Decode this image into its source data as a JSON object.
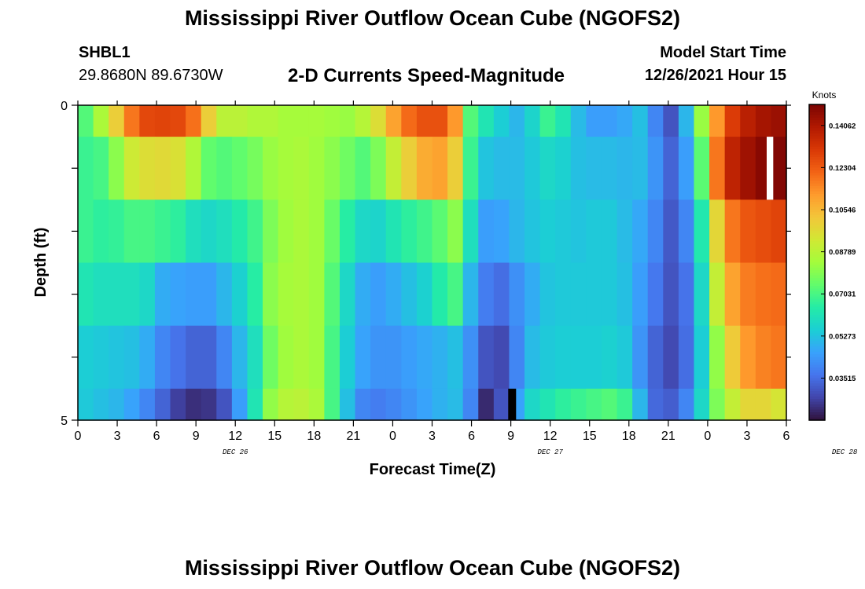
{
  "header": {
    "title": "Mississippi River Outflow Ocean Cube (NGOFS2)",
    "station_id": "SHBL1",
    "coordinates": "29.8680N  89.6730W",
    "subtitle": "2-D Currents Speed-Magnitude",
    "model_start_label": "Model Start Time",
    "model_start_value": "12/26/2021 Hour 15"
  },
  "footer": {
    "title": "Mississippi River Outflow Ocean Cube (NGOFS2)"
  },
  "colors": {
    "scale": [
      "#30123b",
      "#4145ab",
      "#4675ed",
      "#39a2fc",
      "#1bcfd4",
      "#24eca6",
      "#61fc6c",
      "#a4fc3b",
      "#d1e834",
      "#f3c63a",
      "#fe9b2d",
      "#f36315",
      "#d93806",
      "#b11901",
      "#7a0403"
    ],
    "missing": "#000000",
    "blank": "#ffffff"
  },
  "chart_data": {
    "type": "heatmap",
    "xlabel": "Forecast Time(Z)",
    "ylabel": "Depth (ft)",
    "ylim": [
      0,
      5
    ],
    "y_tick_labels": [
      "0",
      "5"
    ],
    "x_tick_labels": [
      "0",
      "3",
      "6",
      "9",
      "12",
      "15",
      "18",
      "21",
      "0",
      "3",
      "6",
      "9",
      "12",
      "15",
      "18",
      "21",
      "0",
      "3",
      "6"
    ],
    "date_labels": [
      "DEC 26",
      "DEC 27",
      "DEC 28"
    ],
    "colorbar": {
      "title": "Knots",
      "vmin": 0.0176,
      "vmax": 0.1494,
      "tick_labels": [
        "0.14062",
        "0.12304",
        "0.10546",
        "0.08789",
        "0.07031",
        "0.05273",
        "0.03515"
      ],
      "tick_values": [
        0.14062,
        0.12304,
        0.10546,
        0.08789,
        0.07031,
        0.05273,
        0.03515
      ]
    },
    "time_hours_start": 0,
    "time_hours_end": 54,
    "depth_bins": [
      "0-0.5",
      "0.5-1.5",
      "1.5-2.5",
      "2.5-3.5",
      "3.5-4.5",
      "4.5-5"
    ],
    "rows": [
      {
        "depth_bin": "0-0.5",
        "knots": [
          0.072,
          0.085,
          0.1,
          0.118,
          0.127,
          0.128,
          0.127,
          0.119,
          0.1,
          0.088,
          0.088,
          0.086,
          0.086,
          0.084,
          0.084,
          0.084,
          0.083,
          0.082,
          0.087,
          0.096,
          0.11,
          0.12,
          0.125,
          0.125,
          0.112,
          0.072,
          0.062,
          0.055,
          0.05,
          0.057,
          0.068,
          0.062,
          0.051,
          0.045,
          0.045,
          0.047,
          0.052,
          0.04,
          0.03,
          0.05,
          0.082,
          0.112,
          0.13,
          0.138,
          0.142,
          0.144
        ]
      },
      {
        "depth_bin": "0.5-1.5",
        "knots": [
          0.068,
          0.07,
          0.08,
          0.092,
          0.096,
          0.097,
          0.095,
          0.086,
          0.074,
          0.072,
          0.074,
          0.077,
          0.082,
          0.084,
          0.085,
          0.083,
          0.08,
          0.076,
          0.072,
          0.078,
          0.09,
          0.1,
          0.108,
          0.11,
          0.1,
          0.068,
          0.053,
          0.051,
          0.051,
          0.054,
          0.058,
          0.056,
          0.052,
          0.051,
          0.051,
          0.05,
          0.051,
          0.043,
          0.033,
          0.045,
          0.073,
          0.118,
          0.137,
          0.143,
          0.147,
          0.148
        ]
      },
      {
        "depth_bin": "1.5-2.5",
        "knots": [
          0.068,
          0.066,
          0.067,
          0.07,
          0.07,
          0.068,
          0.066,
          0.06,
          0.058,
          0.06,
          0.064,
          0.069,
          0.078,
          0.083,
          0.085,
          0.083,
          0.075,
          0.065,
          0.058,
          0.057,
          0.062,
          0.066,
          0.069,
          0.073,
          0.08,
          0.06,
          0.045,
          0.046,
          0.05,
          0.053,
          0.055,
          0.054,
          0.053,
          0.054,
          0.054,
          0.051,
          0.047,
          0.04,
          0.031,
          0.04,
          0.063,
          0.098,
          0.118,
          0.124,
          0.126,
          0.128
        ]
      },
      {
        "depth_bin": "2.5-3.5",
        "knots": [
          0.062,
          0.06,
          0.06,
          0.06,
          0.058,
          0.048,
          0.046,
          0.045,
          0.045,
          0.05,
          0.056,
          0.065,
          0.08,
          0.084,
          0.085,
          0.083,
          0.072,
          0.058,
          0.048,
          0.045,
          0.048,
          0.052,
          0.056,
          0.064,
          0.07,
          0.05,
          0.038,
          0.035,
          0.042,
          0.048,
          0.053,
          0.054,
          0.054,
          0.054,
          0.054,
          0.052,
          0.045,
          0.037,
          0.03,
          0.036,
          0.058,
          0.09,
          0.11,
          0.117,
          0.119,
          0.12
        ]
      },
      {
        "depth_bin": "3.5-4.5",
        "knots": [
          0.055,
          0.054,
          0.053,
          0.052,
          0.048,
          0.04,
          0.036,
          0.033,
          0.033,
          0.04,
          0.05,
          0.06,
          0.076,
          0.083,
          0.085,
          0.083,
          0.07,
          0.055,
          0.046,
          0.043,
          0.043,
          0.045,
          0.047,
          0.049,
          0.052,
          0.042,
          0.03,
          0.028,
          0.04,
          0.051,
          0.054,
          0.055,
          0.055,
          0.055,
          0.056,
          0.054,
          0.043,
          0.033,
          0.028,
          0.035,
          0.055,
          0.081,
          0.101,
          0.112,
          0.116,
          0.118
        ]
      },
      {
        "depth_bin": "4.5-5",
        "knots": [
          0.054,
          0.052,
          0.05,
          0.046,
          0.04,
          0.033,
          0.026,
          0.023,
          0.024,
          0.03,
          0.045,
          0.062,
          0.081,
          0.087,
          0.088,
          0.085,
          0.07,
          0.052,
          0.04,
          0.038,
          0.04,
          0.043,
          0.046,
          0.049,
          0.051,
          0.04,
          0.022,
          0.03,
          0.046,
          0.058,
          0.062,
          0.066,
          0.068,
          0.07,
          0.072,
          0.068,
          0.05,
          0.034,
          0.032,
          0.04,
          0.058,
          0.078,
          0.09,
          0.098,
          0.098,
          0.094
        ]
      }
    ],
    "missing_segments": [
      {
        "depth_bin": "4.5-5",
        "from_hour": 32.8,
        "to_hour": 33.4
      }
    ],
    "blank_segments": [
      {
        "depth_bin": "0.5-1.5",
        "from_hour": 52.5,
        "to_hour": 53.0
      }
    ]
  }
}
